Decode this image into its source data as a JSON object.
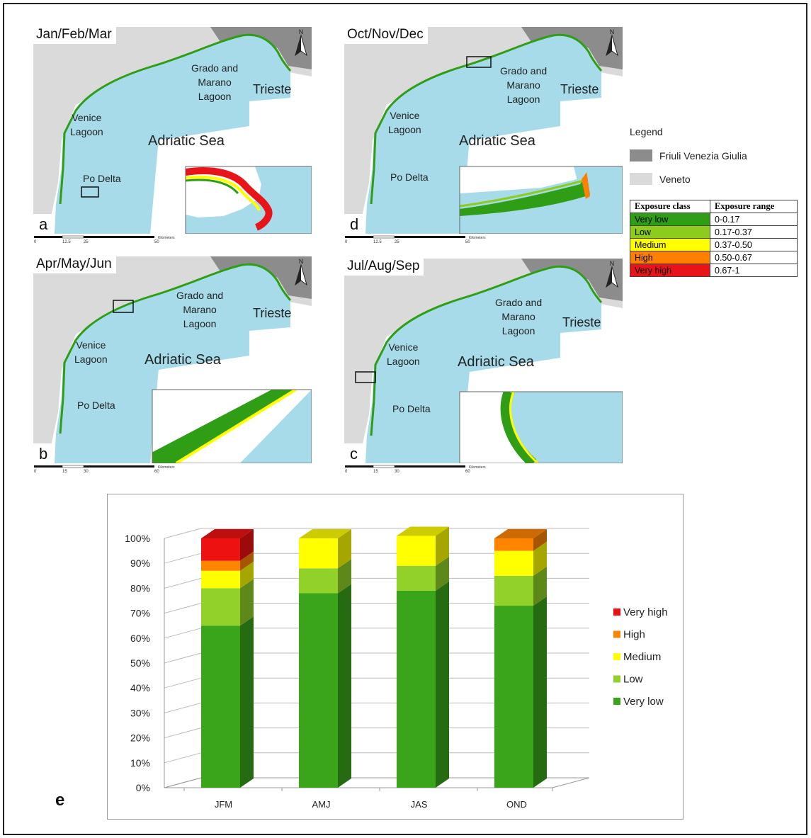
{
  "maps": [
    {
      "id": "a",
      "title": "Jan/Feb/Mar",
      "letter": "a",
      "labels": {
        "grado": "Grado and\nMarano\nLagoon",
        "trieste": "Trieste",
        "venice": "Venice\nLagoon",
        "sea": "Adriatic Sea",
        "po": "Po Delta"
      },
      "north": "N",
      "scale_ticks": [
        "0",
        "12.5",
        "25",
        "50"
      ],
      "scale_unit": "Kilometers"
    },
    {
      "id": "d",
      "title": "Oct/Nov/Dec",
      "letter": "d",
      "labels": {
        "grado": "Grado and\nMarano\nLagoon",
        "trieste": "Trieste",
        "venice": "Venice\nLagoon",
        "sea": "Adriatic Sea",
        "po": "Po Delta"
      },
      "north": "N",
      "scale_ticks": [
        "0",
        "12.5",
        "25",
        "50"
      ],
      "scale_unit": "Kilometers"
    },
    {
      "id": "b",
      "title": "Apr/May/Jun",
      "letter": "b",
      "labels": {
        "grado": "Grado and\nMarano\nLagoon",
        "trieste": "Trieste",
        "venice": "Venice\nLagoon",
        "sea": "Adriatic Sea",
        "po": "Po Delta"
      },
      "north": "N",
      "scale_ticks": [
        "0",
        "15",
        "30",
        "60"
      ],
      "scale_unit": "Kilometers"
    },
    {
      "id": "c",
      "title": "Jul/Aug/Sep",
      "letter": "c",
      "labels": {
        "grado": "Grado and\nMarano\nLagoon",
        "trieste": "Trieste",
        "venice": "Venice\nLagoon",
        "sea": "Adriatic Sea",
        "po": "Po Delta"
      },
      "north": "N",
      "scale_ticks": [
        "0",
        "15",
        "30",
        "60"
      ],
      "scale_unit": "Kilometers"
    }
  ],
  "legend": {
    "title": "Legend",
    "regions": [
      {
        "label": "Friuli Venezia Giulia",
        "color": "#8c8c8c"
      },
      {
        "label": "Veneto",
        "color": "#dadada"
      }
    ],
    "table_headers": [
      "Exposure class",
      "Exposure range"
    ],
    "classes": [
      {
        "label": "Very low",
        "range": "0-0.17",
        "color": "#2f9e16"
      },
      {
        "label": "Low",
        "range": "0.17-0.37",
        "color": "#8ccc1c"
      },
      {
        "label": "Medium",
        "range": "0.37-0.50",
        "color": "#ffff00"
      },
      {
        "label": "High",
        "range": "0.50-0.67",
        "color": "#ff8000"
      },
      {
        "label": "Very high",
        "range": "0.67-1",
        "color": "#e8141a"
      }
    ]
  },
  "chart_letter": "e",
  "chart_data": {
    "type": "bar",
    "stacked": true,
    "categories": [
      "JFM",
      "AMJ",
      "JAS",
      "OND"
    ],
    "yticks": [
      "0%",
      "10%",
      "20%",
      "30%",
      "40%",
      "50%",
      "60%",
      "70%",
      "80%",
      "90%",
      "100%"
    ],
    "ylim": [
      0,
      100
    ],
    "series": [
      {
        "name": "Very low",
        "values": [
          65,
          78,
          79,
          73
        ],
        "color": "#3aa41a"
      },
      {
        "name": "Low",
        "values": [
          15,
          10,
          10,
          12
        ],
        "color": "#92d12a"
      },
      {
        "name": "Medium",
        "values": [
          7,
          12,
          12,
          10
        ],
        "color": "#ffff00"
      },
      {
        "name": "High",
        "values": [
          4,
          0,
          0,
          5
        ],
        "color": "#ff8400"
      },
      {
        "name": "Very high",
        "values": [
          9,
          0,
          0,
          0
        ],
        "color": "#ee1111"
      }
    ],
    "legend_order": [
      "Very high",
      "High",
      "Medium",
      "Low",
      "Very low"
    ],
    "legend_position": "right",
    "grid": true
  }
}
